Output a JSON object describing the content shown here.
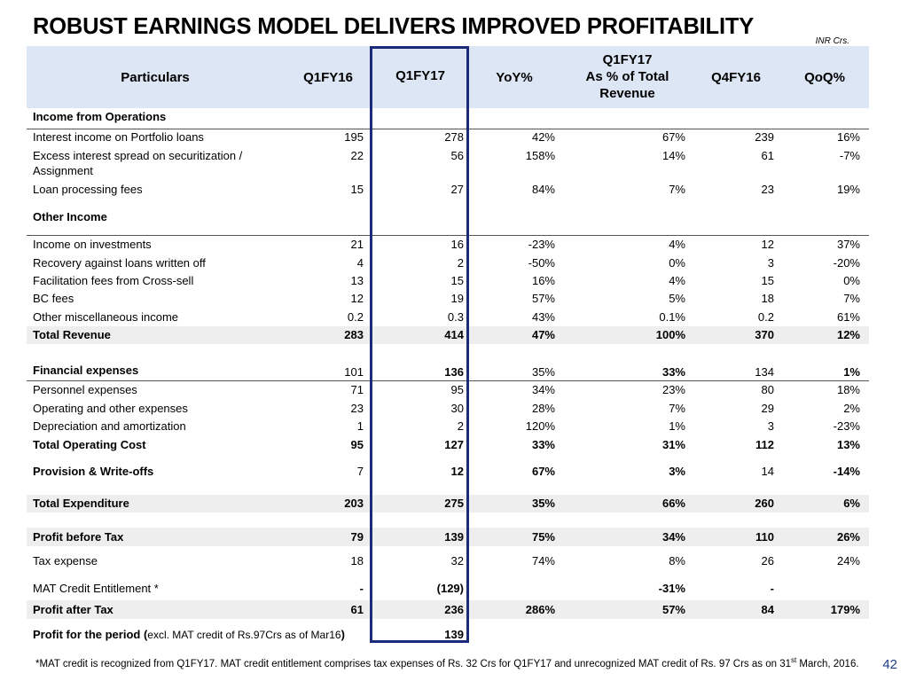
{
  "title": "ROBUST EARNINGS MODEL DELIVERS IMPROVED PROFITABILITY",
  "unit": "INR Crs.",
  "headers": {
    "particulars": "Particulars",
    "q1fy16": "Q1FY16",
    "q1fy17": "Q1FY17",
    "yoy": "YoY%",
    "pct_line1": "Q1FY17",
    "pct_line2": "As % of Total",
    "pct_line3": "Revenue",
    "q4fy16": "Q4FY16",
    "qoq": "QoQ%"
  },
  "rows": [
    {
      "label": "Income from Operations"
    },
    {
      "label": "Interest income on Portfolio loans",
      "values": [
        "195",
        "278",
        "42%",
        "67%",
        "239",
        "16%"
      ]
    },
    {
      "label": "Excess interest spread on securitization / Assignment",
      "values": [
        "22",
        "56",
        "158%",
        "14%",
        "61",
        "-7%"
      ]
    },
    {
      "label": "Loan processing fees",
      "values": [
        "15",
        "27",
        "84%",
        "7%",
        "23",
        "19%"
      ]
    },
    {
      "label": "Other Income"
    },
    {
      "label": "Income on investments",
      "values": [
        "21",
        "16",
        "-23%",
        "4%",
        "12",
        "37%"
      ]
    },
    {
      "label": "Recovery against loans written off",
      "values": [
        "4",
        "2",
        "-50%",
        "0%",
        "3",
        "-20%"
      ]
    },
    {
      "label": "Facilitation fees from Cross-sell",
      "values": [
        "13",
        "15",
        "16%",
        "4%",
        "15",
        "0%"
      ]
    },
    {
      "label": "BC fees",
      "values": [
        "12",
        "19",
        "57%",
        "5%",
        "18",
        "7%"
      ]
    },
    {
      "label": "Other miscellaneous income",
      "values": [
        "0.2",
        "0.3",
        "43%",
        "0.1%",
        "0.2",
        "61%"
      ]
    },
    {
      "label": "Total Revenue",
      "values": [
        "283",
        "414",
        "47%",
        "100%",
        "370",
        "12%"
      ]
    },
    {
      "label": "Financial expenses",
      "values": [
        "101",
        "136",
        "35%",
        "33%",
        "134",
        "1%"
      ]
    },
    {
      "label": "Personnel expenses",
      "values": [
        "71",
        "95",
        "34%",
        "23%",
        "80",
        "18%"
      ]
    },
    {
      "label": "Operating and other expenses",
      "values": [
        "23",
        "30",
        "28%",
        "7%",
        "29",
        "2%"
      ]
    },
    {
      "label": "Depreciation and amortization",
      "values": [
        "1",
        "2",
        "120%",
        "1%",
        "3",
        "-23%"
      ]
    },
    {
      "label": "Total Operating Cost",
      "values": [
        "95",
        "127",
        "33%",
        "31%",
        "112",
        "13%"
      ]
    },
    {
      "label": "Provision & Write-offs",
      "values": [
        "7",
        "12",
        "67%",
        "3%",
        "14",
        "-14%"
      ]
    },
    {
      "label": "Total Expenditure",
      "values": [
        "203",
        "275",
        "35%",
        "66%",
        "260",
        "6%"
      ]
    },
    {
      "label": "Profit before Tax",
      "values": [
        "79",
        "139",
        "75%",
        "34%",
        "110",
        "26%"
      ]
    },
    {
      "label": "Tax expense",
      "values": [
        "18",
        "32",
        "74%",
        "8%",
        "26",
        "24%"
      ]
    },
    {
      "label": "MAT Credit Entitlement *",
      "values": [
        "-",
        "(129)",
        "",
        "-31%",
        "-",
        ""
      ]
    },
    {
      "label": "Profit after Tax",
      "values": [
        "61",
        "236",
        "286%",
        "57%",
        "84",
        "179%"
      ]
    },
    {
      "label": "Profit for the period (",
      "label_small": "excl. MAT credit of Rs.97Crs as of Mar16",
      "label_tail": ")",
      "values": [
        "",
        "139",
        "",
        "",
        "",
        ""
      ]
    }
  ],
  "footnote": {
    "text": "*MAT credit is recognized from Q1FY17. MAT credit entitlement comprises tax expenses of Rs. 32 Crs for Q1FY17 and unrecognized MAT credit of Rs. 97 Crs as on 31",
    "sup": "st",
    "tail": " March, 2016."
  },
  "page_number": "42"
}
